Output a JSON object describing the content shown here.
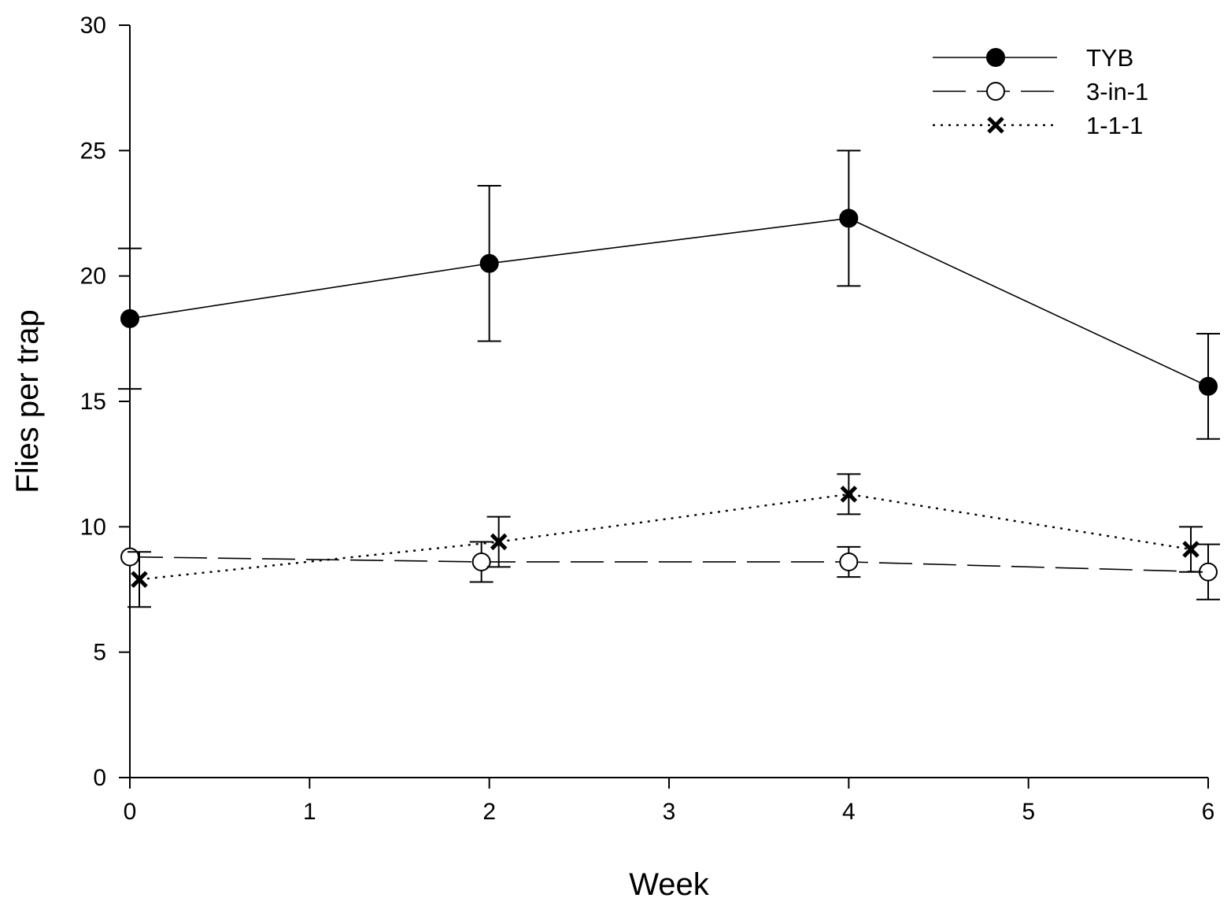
{
  "chart_data": {
    "type": "line",
    "title": "",
    "xlabel": "Week",
    "ylabel": "Flies per trap",
    "xlim": [
      0,
      6
    ],
    "ylim": [
      0,
      30
    ],
    "xticks": [
      0,
      1,
      2,
      3,
      4,
      5,
      6
    ],
    "yticks": [
      0,
      5,
      10,
      15,
      20,
      25,
      30
    ],
    "grid": false,
    "legend_position": "top-right",
    "series": [
      {
        "name": "TYB",
        "line_style": "solid",
        "marker": "filled-circle",
        "x": [
          0,
          2,
          4,
          6
        ],
        "y": [
          18.3,
          20.5,
          22.3,
          15.6
        ],
        "error": [
          2.8,
          3.1,
          2.7,
          2.1
        ]
      },
      {
        "name": "3-in-1",
        "line_style": "dashed",
        "marker": "open-circle",
        "x": [
          0,
          2,
          4,
          6
        ],
        "y": [
          8.8,
          8.6,
          8.6,
          8.2
        ],
        "error": [
          0.0,
          0.8,
          0.6,
          1.1
        ]
      },
      {
        "name": "1-1-1",
        "line_style": "dotted",
        "marker": "x",
        "x": [
          0,
          2,
          4,
          6
        ],
        "y": [
          7.9,
          9.4,
          11.3,
          9.1
        ],
        "error": [
          1.1,
          1.0,
          0.8,
          0.9
        ]
      }
    ]
  }
}
